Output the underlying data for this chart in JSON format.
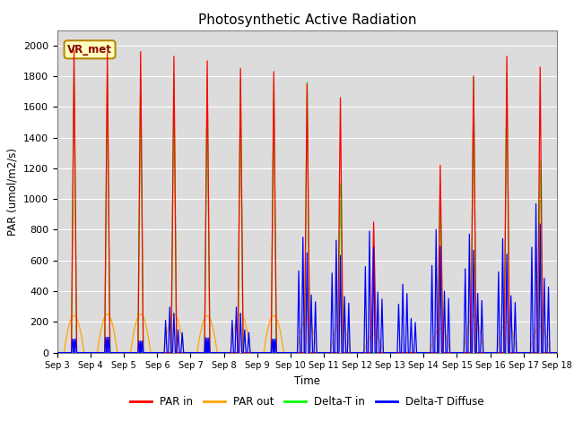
{
  "title": "Photosynthetic Active Radiation",
  "ylabel": "PAR (umol/m2/s)",
  "xlabel": "Time",
  "ylim": [
    0,
    2100
  ],
  "xlim": [
    0,
    15
  ],
  "xtick_labels": [
    "Sep 3",
    "Sep 4",
    "Sep 5",
    "Sep 6",
    "Sep 7",
    "Sep 8",
    "Sep 9",
    "Sep 10",
    "Sep 11",
    "Sep 12",
    "Sep 13",
    "Sep 14",
    "Sep 15",
    "Sep 16",
    "Sep 17",
    "Sep 18"
  ],
  "ytick_values": [
    0,
    200,
    400,
    600,
    800,
    1000,
    1200,
    1400,
    1600,
    1800,
    2000
  ],
  "annotation_text": "VR_met",
  "colors": {
    "PAR_in": "#FF0000",
    "PAR_out": "#FFA500",
    "Delta_T_in": "#00FF00",
    "Delta_T_Diffuse": "#0000FF"
  },
  "background_color": "#DCDCDC",
  "legend_labels": [
    "PAR in",
    "PAR out",
    "Delta-T in",
    "Delta-T Diffuse"
  ],
  "peak_values": {
    "PAR_in": [
      1970,
      1950,
      1960,
      1930,
      1900,
      1850,
      1830,
      1750,
      1660,
      850,
      0,
      1220,
      1800,
      1930,
      1860
    ],
    "PAR_out": [
      240,
      250,
      250,
      250,
      240,
      250,
      240,
      225,
      200,
      120,
      0,
      160,
      240,
      200,
      170
    ],
    "Delta_T_in": [
      1850,
      1820,
      1800,
      1790,
      1780,
      1780,
      1760,
      1760,
      1100,
      0,
      0,
      1050,
      1800,
      1820,
      1250
    ],
    "Delta_T_Dif": [
      110,
      125,
      95,
      300,
      120,
      300,
      110,
      760,
      740,
      800,
      450,
      810,
      780,
      750,
      980
    ]
  }
}
